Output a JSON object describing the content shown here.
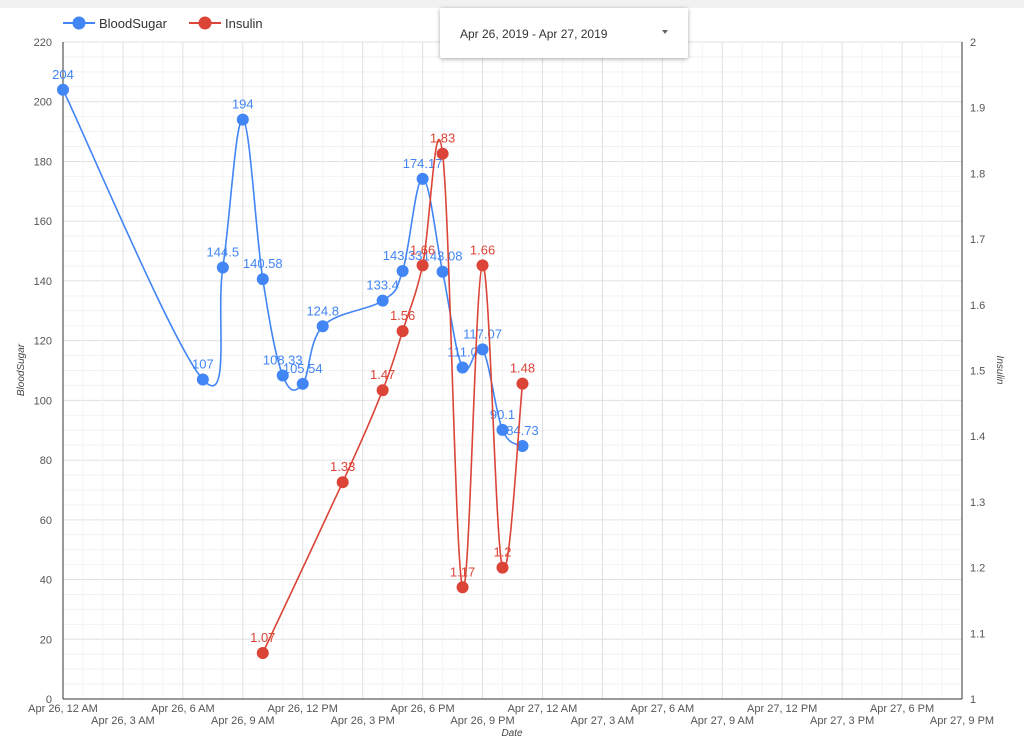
{
  "date_range": {
    "label": "Apr 26, 2019 - Apr 27, 2019"
  },
  "chart_data": {
    "type": "line",
    "xlabel": "Date",
    "ylabel": "BloodSugar",
    "y2label": "Insulin",
    "x_range": [
      "2019-04-26T00:00",
      "2019-04-27T21:00"
    ],
    "ylim": [
      0,
      220
    ],
    "y2lim": [
      1,
      2
    ],
    "grid": true,
    "legend_position": "top-left",
    "x_ticks_row1": [
      "Apr 26, 12 AM",
      "Apr 26, 6 AM",
      "Apr 26, 12 PM",
      "Apr 26, 6 PM",
      "Apr 27, 12 AM",
      "Apr 27, 6 AM",
      "Apr 27, 12 PM",
      "Apr 27, 6 PM"
    ],
    "x_ticks_row1_times": [
      "2019-04-26T00:00",
      "2019-04-26T06:00",
      "2019-04-26T12:00",
      "2019-04-26T18:00",
      "2019-04-27T00:00",
      "2019-04-27T06:00",
      "2019-04-27T12:00",
      "2019-04-27T18:00"
    ],
    "x_ticks_row2": [
      "Apr 26, 3 AM",
      "Apr 26, 9 AM",
      "Apr 26, 3 PM",
      "Apr 26, 9 PM",
      "Apr 27, 3 AM",
      "Apr 27, 9 AM",
      "Apr 27, 3 PM",
      "Apr 27, 9 PM"
    ],
    "x_ticks_row2_times": [
      "2019-04-26T03:00",
      "2019-04-26T09:00",
      "2019-04-26T15:00",
      "2019-04-26T21:00",
      "2019-04-27T03:00",
      "2019-04-27T09:00",
      "2019-04-27T15:00",
      "2019-04-27T21:00"
    ],
    "y_ticks": [
      "0",
      "20",
      "40",
      "60",
      "80",
      "100",
      "120",
      "140",
      "160",
      "180",
      "200",
      "220"
    ],
    "y2_ticks": [
      "1",
      "1.1",
      "1.2",
      "1.3",
      "1.4",
      "1.5",
      "1.6",
      "1.7",
      "1.8",
      "1.9",
      "2"
    ],
    "series": [
      {
        "name": "BloodSugar",
        "axis": "left",
        "color": "#4285f4",
        "points": [
          {
            "x": "2019-04-26T00:00",
            "y": 204,
            "label": "204"
          },
          {
            "x": "2019-04-26T07:00",
            "y": 107,
            "label": "107"
          },
          {
            "x": "2019-04-26T08:00",
            "y": 144.5,
            "label": "144.5"
          },
          {
            "x": "2019-04-26T09:00",
            "y": 194,
            "label": "194"
          },
          {
            "x": "2019-04-26T10:00",
            "y": 140.58,
            "label": "140.58"
          },
          {
            "x": "2019-04-26T11:00",
            "y": 108.33,
            "label": "108.33"
          },
          {
            "x": "2019-04-26T12:00",
            "y": 105.54,
            "label": "105.54"
          },
          {
            "x": "2019-04-26T13:00",
            "y": 124.8,
            "label": "124.8"
          },
          {
            "x": "2019-04-26T16:00",
            "y": 133.4,
            "label": "133.4"
          },
          {
            "x": "2019-04-26T17:00",
            "y": 143.33,
            "label": "143.33"
          },
          {
            "x": "2019-04-26T18:00",
            "y": 174.17,
            "label": "174.17"
          },
          {
            "x": "2019-04-26T19:00",
            "y": 143.08,
            "label": "143.08"
          },
          {
            "x": "2019-04-26T20:00",
            "y": 111.0,
            "label": "111.0"
          },
          {
            "x": "2019-04-26T21:00",
            "y": 117.07,
            "label": "117.07"
          },
          {
            "x": "2019-04-26T22:00",
            "y": 90.1,
            "label": "90.1"
          },
          {
            "x": "2019-04-26T23:00",
            "y": 84.73,
            "label": "84.73"
          }
        ]
      },
      {
        "name": "Insulin",
        "axis": "right",
        "color": "#db4437",
        "points": [
          {
            "x": "2019-04-26T10:00",
            "y": 1.07,
            "label": "1.07"
          },
          {
            "x": "2019-04-26T14:00",
            "y": 1.33,
            "label": "1.33"
          },
          {
            "x": "2019-04-26T16:00",
            "y": 1.47,
            "label": "1.47"
          },
          {
            "x": "2019-04-26T17:00",
            "y": 1.56,
            "label": "1.56"
          },
          {
            "x": "2019-04-26T18:00",
            "y": 1.66,
            "label": "1.66"
          },
          {
            "x": "2019-04-26T19:00",
            "y": 1.83,
            "label": "1.83"
          },
          {
            "x": "2019-04-26T20:00",
            "y": 1.17,
            "label": "1.17"
          },
          {
            "x": "2019-04-26T21:00",
            "y": 1.66,
            "label": "1.66"
          },
          {
            "x": "2019-04-26T22:00",
            "y": 1.2,
            "label": "1.2"
          },
          {
            "x": "2019-04-26T23:00",
            "y": 1.48,
            "label": "1.48"
          }
        ]
      }
    ]
  }
}
